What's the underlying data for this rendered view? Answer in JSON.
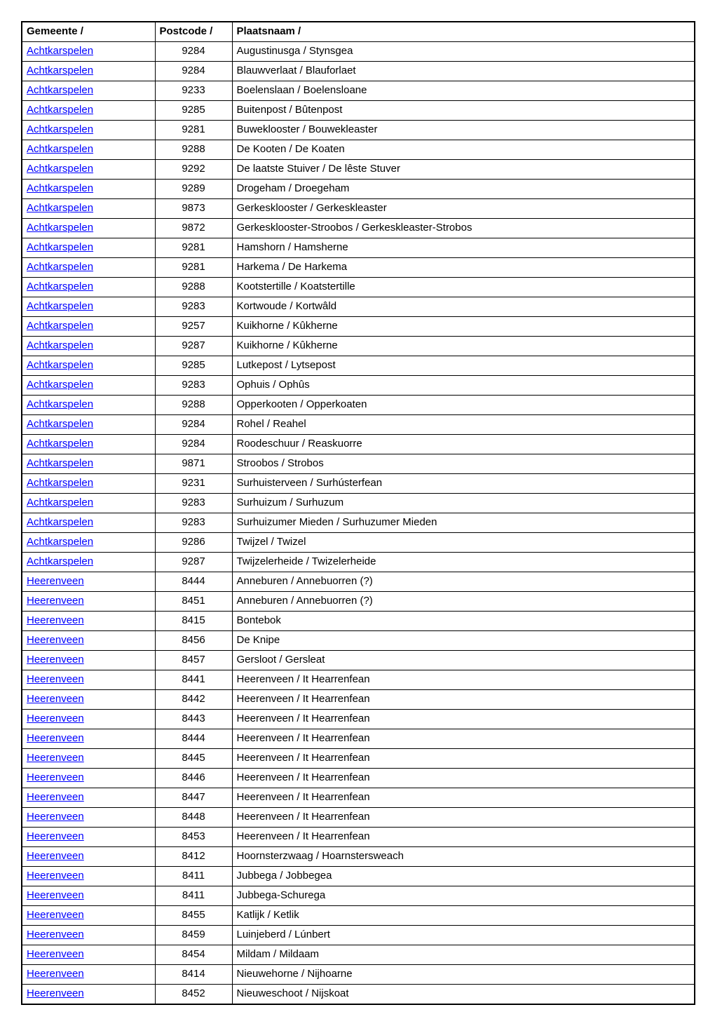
{
  "table": {
    "columns": [
      {
        "key": "gemeente",
        "label": "Gemeente /"
      },
      {
        "key": "postcode",
        "label": "Postcode /"
      },
      {
        "key": "plaatsnaam",
        "label": "Plaatsnaam /"
      }
    ],
    "rows": [
      {
        "gemeente": "Achtkarspelen",
        "postcode": "9284",
        "plaatsnaam": "Augustinusga / Stynsgea"
      },
      {
        "gemeente": "Achtkarspelen",
        "postcode": "9284",
        "plaatsnaam": "Blauwverlaat / Blauforlaet"
      },
      {
        "gemeente": "Achtkarspelen",
        "postcode": "9233",
        "plaatsnaam": "Boelenslaan / Boelensloane"
      },
      {
        "gemeente": "Achtkarspelen",
        "postcode": "9285",
        "plaatsnaam": "Buitenpost / Bûtenpost"
      },
      {
        "gemeente": "Achtkarspelen",
        "postcode": "9281",
        "plaatsnaam": "Buweklooster / Bouwekleaster"
      },
      {
        "gemeente": "Achtkarspelen",
        "postcode": "9288",
        "plaatsnaam": "De Kooten / De Koaten"
      },
      {
        "gemeente": "Achtkarspelen",
        "postcode": "9292",
        "plaatsnaam": "De laatste Stuiver / De lêste Stuver"
      },
      {
        "gemeente": "Achtkarspelen",
        "postcode": "9289",
        "plaatsnaam": "Drogeham / Droegeham"
      },
      {
        "gemeente": "Achtkarspelen",
        "postcode": "9873",
        "plaatsnaam": "Gerkesklooster / Gerkeskleaster"
      },
      {
        "gemeente": "Achtkarspelen",
        "postcode": "9872",
        "plaatsnaam": "Gerkesklooster-Stroobos / Gerkeskleaster-Strobos"
      },
      {
        "gemeente": "Achtkarspelen",
        "postcode": "9281",
        "plaatsnaam": "Hamshorn / Hamsherne"
      },
      {
        "gemeente": "Achtkarspelen",
        "postcode": "9281",
        "plaatsnaam": "Harkema / De Harkema"
      },
      {
        "gemeente": "Achtkarspelen",
        "postcode": "9288",
        "plaatsnaam": "Kootstertille / Koatstertille"
      },
      {
        "gemeente": "Achtkarspelen",
        "postcode": "9283",
        "plaatsnaam": "Kortwoude / Kortwâld"
      },
      {
        "gemeente": "Achtkarspelen",
        "postcode": "9257",
        "plaatsnaam": "Kuikhorne / Kûkherne"
      },
      {
        "gemeente": "Achtkarspelen",
        "postcode": "9287",
        "plaatsnaam": "Kuikhorne / Kûkherne"
      },
      {
        "gemeente": "Achtkarspelen",
        "postcode": "9285",
        "plaatsnaam": "Lutkepost / Lytsepost"
      },
      {
        "gemeente": "Achtkarspelen",
        "postcode": "9283",
        "plaatsnaam": "Ophuis / Ophûs"
      },
      {
        "gemeente": "Achtkarspelen",
        "postcode": "9288",
        "plaatsnaam": "Opperkooten / Opperkoaten"
      },
      {
        "gemeente": "Achtkarspelen",
        "postcode": "9284",
        "plaatsnaam": "Rohel / Reahel"
      },
      {
        "gemeente": "Achtkarspelen",
        "postcode": "9284",
        "plaatsnaam": "Roodeschuur / Reaskuorre"
      },
      {
        "gemeente": "Achtkarspelen",
        "postcode": "9871",
        "plaatsnaam": "Stroobos / Strobos"
      },
      {
        "gemeente": "Achtkarspelen",
        "postcode": "9231",
        "plaatsnaam": "Surhuisterveen / Surhústerfean"
      },
      {
        "gemeente": "Achtkarspelen",
        "postcode": "9283",
        "plaatsnaam": "Surhuizum / Surhuzum"
      },
      {
        "gemeente": "Achtkarspelen",
        "postcode": "9283",
        "plaatsnaam": "Surhuizumer Mieden / Surhuzumer Mieden"
      },
      {
        "gemeente": "Achtkarspelen",
        "postcode": "9286",
        "plaatsnaam": "Twijzel / Twizel"
      },
      {
        "gemeente": "Achtkarspelen",
        "postcode": "9287",
        "plaatsnaam": "Twijzelerheide / Twizelerheide"
      },
      {
        "gemeente": "Heerenveen",
        "postcode": "8444",
        "plaatsnaam": "Anneburen / Annebuorren (?)"
      },
      {
        "gemeente": "Heerenveen",
        "postcode": "8451",
        "plaatsnaam": "Anneburen / Annebuorren (?)"
      },
      {
        "gemeente": "Heerenveen",
        "postcode": "8415",
        "plaatsnaam": "Bontebok"
      },
      {
        "gemeente": "Heerenveen",
        "postcode": "8456",
        "plaatsnaam": "De Knipe"
      },
      {
        "gemeente": "Heerenveen",
        "postcode": "8457",
        "plaatsnaam": "Gersloot / Gersleat"
      },
      {
        "gemeente": "Heerenveen",
        "postcode": "8441",
        "plaatsnaam": "Heerenveen / It Hearrenfean"
      },
      {
        "gemeente": "Heerenveen",
        "postcode": "8442",
        "plaatsnaam": "Heerenveen / It Hearrenfean"
      },
      {
        "gemeente": "Heerenveen",
        "postcode": "8443",
        "plaatsnaam": "Heerenveen / It Hearrenfean"
      },
      {
        "gemeente": "Heerenveen",
        "postcode": "8444",
        "plaatsnaam": "Heerenveen / It Hearrenfean"
      },
      {
        "gemeente": "Heerenveen",
        "postcode": "8445",
        "plaatsnaam": "Heerenveen / It Hearrenfean"
      },
      {
        "gemeente": "Heerenveen",
        "postcode": "8446",
        "plaatsnaam": "Heerenveen / It Hearrenfean"
      },
      {
        "gemeente": "Heerenveen",
        "postcode": "8447",
        "plaatsnaam": "Heerenveen / It Hearrenfean"
      },
      {
        "gemeente": "Heerenveen",
        "postcode": "8448",
        "plaatsnaam": "Heerenveen / It Hearrenfean"
      },
      {
        "gemeente": "Heerenveen",
        "postcode": "8453",
        "plaatsnaam": "Heerenveen / It Hearrenfean"
      },
      {
        "gemeente": "Heerenveen",
        "postcode": "8412",
        "plaatsnaam": "Hoornsterzwaag / Hoarnstersweach"
      },
      {
        "gemeente": "Heerenveen",
        "postcode": "8411",
        "plaatsnaam": "Jubbega / Jobbegea"
      },
      {
        "gemeente": "Heerenveen",
        "postcode": "8411",
        "plaatsnaam": "Jubbega-Schurega"
      },
      {
        "gemeente": "Heerenveen",
        "postcode": "8455",
        "plaatsnaam": "Katlijk / Ketlik"
      },
      {
        "gemeente": "Heerenveen",
        "postcode": "8459",
        "plaatsnaam": "Luinjeberd / Lúnbert"
      },
      {
        "gemeente": "Heerenveen",
        "postcode": "8454",
        "plaatsnaam": "Mildam / Mildaam"
      },
      {
        "gemeente": "Heerenveen",
        "postcode": "8414",
        "plaatsnaam": "Nieuwehorne / Nijhoarne"
      },
      {
        "gemeente": "Heerenveen",
        "postcode": "8452",
        "plaatsnaam": "Nieuweschoot / Nijskoat"
      }
    ],
    "link_color": "#0000ff",
    "border_color": "#000000",
    "background_color": "#ffffff",
    "font_family": "Arial",
    "font_size_pt": 11
  }
}
